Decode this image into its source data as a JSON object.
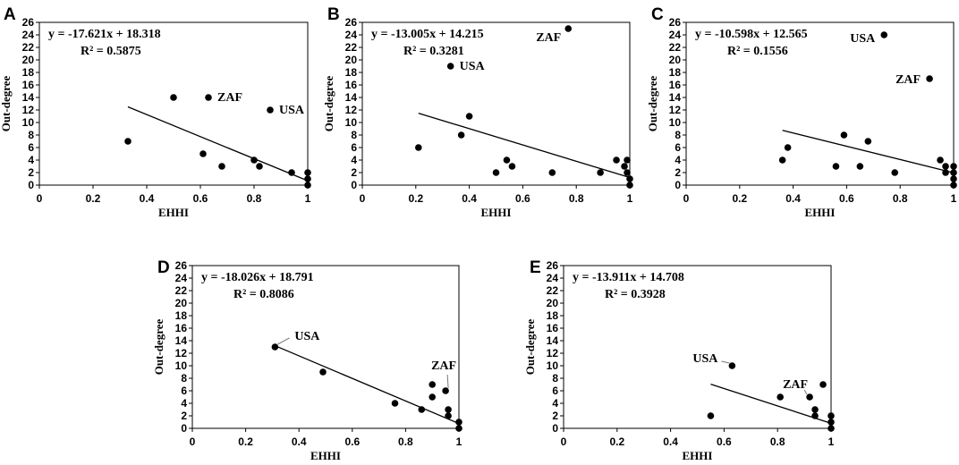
{
  "chart_data": [
    {
      "panel": "A",
      "type": "scatter",
      "xlabel": "EHHI",
      "ylabel": "Out-degree",
      "xlim": [
        0,
        1
      ],
      "ylim": [
        0,
        26
      ],
      "xticks": [
        "0",
        "0.2",
        "0.4",
        "0.6",
        "0.8",
        "1"
      ],
      "yticks": [
        "0",
        "2",
        "4",
        "6",
        "8",
        "10",
        "12",
        "14",
        "16",
        "18",
        "20",
        "22",
        "24",
        "26"
      ],
      "equation": "y = -17.621x + 18.318",
      "r2": "R² = 0.5875",
      "trend": {
        "slope": -17.621,
        "intercept": 18.318,
        "x_range": [
          0.33,
          1.0
        ]
      },
      "points": [
        {
          "x": 0.33,
          "y": 7
        },
        {
          "x": 0.5,
          "y": 14
        },
        {
          "x": 0.61,
          "y": 5
        },
        {
          "x": 0.63,
          "y": 14,
          "label": "ZAF"
        },
        {
          "x": 0.68,
          "y": 3
        },
        {
          "x": 0.8,
          "y": 4
        },
        {
          "x": 0.82,
          "y": 3
        },
        {
          "x": 0.86,
          "y": 12,
          "label": "USA"
        },
        {
          "x": 0.94,
          "y": 2
        },
        {
          "x": 1.0,
          "y": 2
        },
        {
          "x": 1.0,
          "y": 1
        },
        {
          "x": 1.0,
          "y": 0
        }
      ]
    },
    {
      "panel": "B",
      "type": "scatter",
      "xlabel": "EHHI",
      "ylabel": "Out-degree",
      "xlim": [
        0,
        1
      ],
      "ylim": [
        0,
        26
      ],
      "xticks": [
        "0",
        "0.2",
        "0.4",
        "0.6",
        "0.8",
        "1"
      ],
      "yticks": [
        "0",
        "2",
        "4",
        "6",
        "8",
        "10",
        "12",
        "14",
        "16",
        "18",
        "20",
        "22",
        "24",
        "26"
      ],
      "equation": "y = -13.005x + 14.215",
      "r2": "R² = 0.3281",
      "trend": {
        "slope": -13.005,
        "intercept": 14.215,
        "x_range": [
          0.21,
          1.0
        ]
      },
      "points": [
        {
          "x": 0.21,
          "y": 6
        },
        {
          "x": 0.33,
          "y": 19,
          "label": "USA"
        },
        {
          "x": 0.37,
          "y": 8
        },
        {
          "x": 0.4,
          "y": 11
        },
        {
          "x": 0.5,
          "y": 2
        },
        {
          "x": 0.54,
          "y": 4
        },
        {
          "x": 0.56,
          "y": 3
        },
        {
          "x": 0.71,
          "y": 2
        },
        {
          "x": 0.77,
          "y": 25,
          "label": "ZAF"
        },
        {
          "x": 0.89,
          "y": 2
        },
        {
          "x": 0.95,
          "y": 4
        },
        {
          "x": 0.98,
          "y": 3
        },
        {
          "x": 0.99,
          "y": 4
        },
        {
          "x": 0.99,
          "y": 2
        },
        {
          "x": 1.0,
          "y": 1
        },
        {
          "x": 1.0,
          "y": 0
        }
      ]
    },
    {
      "panel": "C",
      "type": "scatter",
      "xlabel": "EHHI",
      "ylabel": "Out-degree",
      "xlim": [
        0,
        1
      ],
      "ylim": [
        0,
        26
      ],
      "xticks": [
        "0",
        "0.2",
        "0.4",
        "0.6",
        "0.8",
        "1"
      ],
      "yticks": [
        "0",
        "2",
        "4",
        "6",
        "8",
        "10",
        "12",
        "14",
        "16",
        "18",
        "20",
        "22",
        "24",
        "26"
      ],
      "equation": "y = -10.598x + 12.565",
      "r2": "R² = 0.1556",
      "trend": {
        "slope": -10.598,
        "intercept": 12.565,
        "x_range": [
          0.36,
          1.0
        ]
      },
      "points": [
        {
          "x": 0.36,
          "y": 4
        },
        {
          "x": 0.38,
          "y": 6
        },
        {
          "x": 0.56,
          "y": 3
        },
        {
          "x": 0.59,
          "y": 8
        },
        {
          "x": 0.65,
          "y": 3
        },
        {
          "x": 0.68,
          "y": 7
        },
        {
          "x": 0.74,
          "y": 24,
          "label": "USA"
        },
        {
          "x": 0.78,
          "y": 2
        },
        {
          "x": 0.91,
          "y": 17,
          "label": "ZAF"
        },
        {
          "x": 0.95,
          "y": 4
        },
        {
          "x": 0.97,
          "y": 3
        },
        {
          "x": 0.97,
          "y": 2
        },
        {
          "x": 1.0,
          "y": 3
        },
        {
          "x": 1.0,
          "y": 2
        },
        {
          "x": 1.0,
          "y": 1
        },
        {
          "x": 1.0,
          "y": 0
        }
      ]
    },
    {
      "panel": "D",
      "type": "scatter",
      "xlabel": "EHHI",
      "ylabel": "Out-degree",
      "xlim": [
        0,
        1
      ],
      "ylim": [
        0,
        26
      ],
      "xticks": [
        "0",
        "0.2",
        "0.4",
        "0.6",
        "0.8",
        "1"
      ],
      "yticks": [
        "0",
        "2",
        "4",
        "6",
        "8",
        "10",
        "12",
        "14",
        "16",
        "18",
        "20",
        "22",
        "24",
        "26"
      ],
      "equation": "y = -18.026x + 18.791",
      "r2": "R² = 0.8086",
      "trend": {
        "slope": -18.026,
        "intercept": 18.791,
        "x_range": [
          0.31,
          1.0
        ]
      },
      "points": [
        {
          "x": 0.31,
          "y": 13,
          "label": "USA"
        },
        {
          "x": 0.49,
          "y": 9
        },
        {
          "x": 0.76,
          "y": 4
        },
        {
          "x": 0.86,
          "y": 3
        },
        {
          "x": 0.9,
          "y": 7
        },
        {
          "x": 0.9,
          "y": 5
        },
        {
          "x": 0.95,
          "y": 6,
          "label": "ZAF"
        },
        {
          "x": 0.96,
          "y": 3
        },
        {
          "x": 0.96,
          "y": 2
        },
        {
          "x": 1.0,
          "y": 1
        },
        {
          "x": 1.0,
          "y": 0
        }
      ]
    },
    {
      "panel": "E",
      "type": "scatter",
      "xlabel": "EHHI",
      "ylabel": "Out-degree",
      "xlim": [
        0,
        1
      ],
      "ylim": [
        0,
        26
      ],
      "xticks": [
        "0",
        "0.2",
        "0.4",
        "0.6",
        "0.8",
        "1"
      ],
      "yticks": [
        "0",
        "2",
        "4",
        "6",
        "8",
        "10",
        "12",
        "14",
        "16",
        "18",
        "20",
        "22",
        "24",
        "26"
      ],
      "equation": "y = -13.911x + 14.708",
      "r2": "R² = 0.3928",
      "trend": {
        "slope": -13.911,
        "intercept": 14.708,
        "x_range": [
          0.55,
          1.0
        ]
      },
      "points": [
        {
          "x": 0.55,
          "y": 2
        },
        {
          "x": 0.63,
          "y": 10,
          "label": "USA"
        },
        {
          "x": 0.81,
          "y": 5
        },
        {
          "x": 0.92,
          "y": 5,
          "label": "ZAF"
        },
        {
          "x": 0.94,
          "y": 3
        },
        {
          "x": 0.94,
          "y": 2
        },
        {
          "x": 0.97,
          "y": 7
        },
        {
          "x": 1.0,
          "y": 2
        },
        {
          "x": 1.0,
          "y": 1
        },
        {
          "x": 1.0,
          "y": 0
        }
      ]
    }
  ]
}
